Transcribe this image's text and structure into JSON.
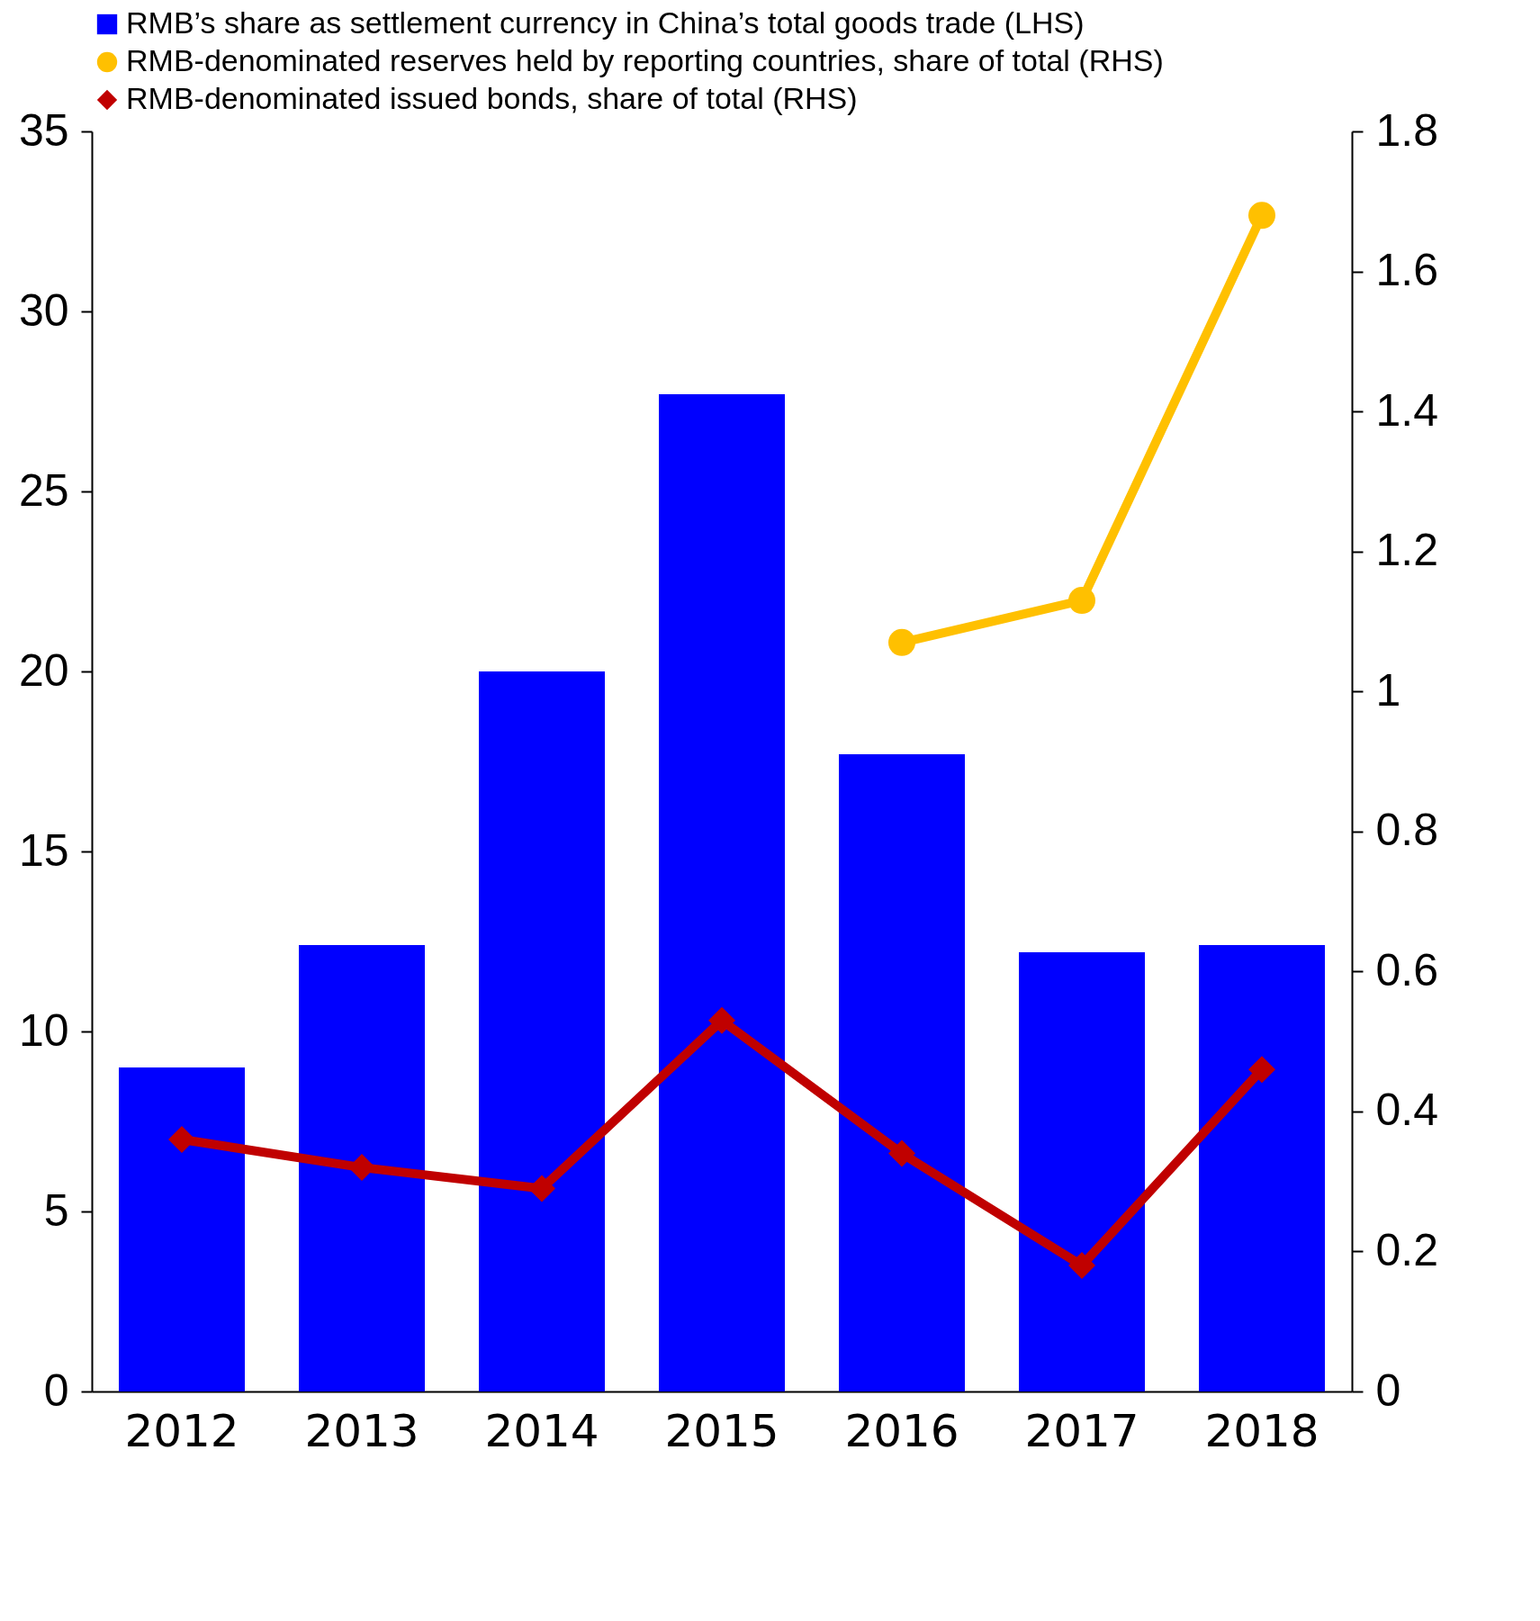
{
  "chart_data": {
    "type": "bar",
    "categories": [
      "2012",
      "2013",
      "2014",
      "2015",
      "2016",
      "2017",
      "2018"
    ],
    "series": [
      {
        "name": "RMB’s share as settlement currency in China’s total goods trade (LHS)",
        "color": "#0000ff",
        "values": [
          9.0,
          12.4,
          20.0,
          27.7,
          17.7,
          12.2,
          12.4
        ]
      },
      {
        "name": "RMB-denominated reserves held by reporting countries, share of total (RHS)",
        "type": "line",
        "axis": "y2",
        "marker": "circle",
        "color": "#ffc000",
        "values": [
          null,
          null,
          null,
          null,
          1.07,
          1.13,
          1.68
        ]
      },
      {
        "name": "RMB-denominated issued bonds, share of total (RHS)",
        "type": "line",
        "axis": "y2",
        "marker": "diamond",
        "color": "#c00000",
        "values": [
          0.36,
          0.32,
          0.29,
          0.53,
          0.34,
          0.18,
          0.46
        ]
      }
    ],
    "ylim": [
      0,
      35
    ],
    "yticks": [
      0,
      5,
      10,
      15,
      20,
      25,
      30,
      35
    ],
    "y2lim": [
      0,
      1.8
    ],
    "y2ticks": [
      0,
      0.2,
      0.4,
      0.6,
      0.8,
      1,
      1.2,
      1.4,
      1.6,
      1.8
    ],
    "grid": false,
    "legend": "top"
  }
}
